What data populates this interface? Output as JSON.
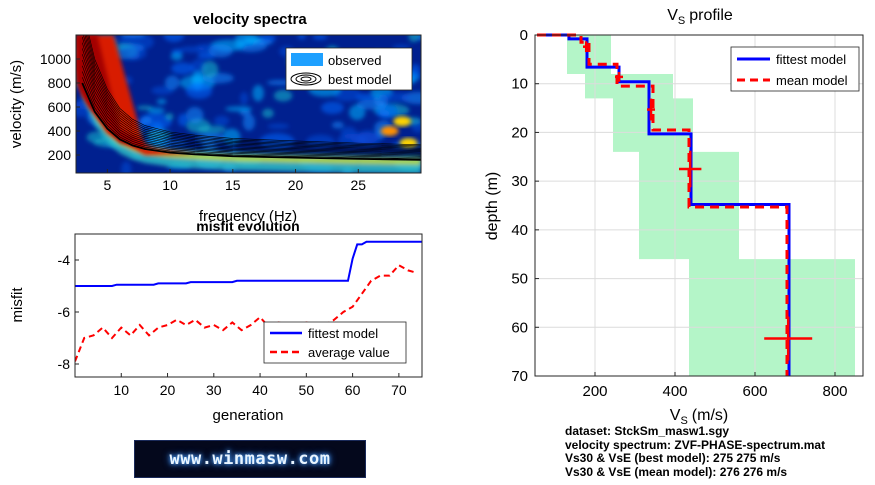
{
  "chart_data": [
    {
      "type": "heatmap",
      "title": "velocity spectra",
      "xlabel": "frequency (Hz)",
      "ylabel": "velocity (m/s)",
      "xlim": [
        2.5,
        30
      ],
      "ylim": [
        50,
        1200
      ],
      "xticks": [
        "5",
        "10",
        "15",
        "20",
        "25"
      ],
      "yticks": [
        "200",
        "400",
        "600",
        "800",
        "1000"
      ],
      "legend": [
        "observed",
        "best model"
      ],
      "legend_position": "top-right",
      "dispersion_curve": {
        "x": [
          3,
          4,
          5,
          6,
          7,
          8,
          10,
          12,
          15,
          20,
          25,
          30
        ],
        "y": [
          800,
          560,
          420,
          330,
          280,
          250,
          220,
          205,
          190,
          178,
          168,
          160
        ]
      }
    },
    {
      "type": "line",
      "title": "misfit evolution",
      "xlabel": "generation",
      "ylabel": "misfit",
      "xlim": [
        0,
        75
      ],
      "ylim": [
        -8.5,
        -3
      ],
      "xticks": [
        "10",
        "20",
        "30",
        "40",
        "50",
        "60",
        "70"
      ],
      "yticks": [
        "-8",
        "-6",
        "-4"
      ],
      "legend_position": "bottom-right",
      "series": [
        {
          "name": "fittest model",
          "color": "#0000ff",
          "style": "solid",
          "x": [
            0,
            8,
            9,
            17,
            18,
            24,
            25,
            34,
            35,
            59,
            60,
            61,
            62,
            63,
            75
          ],
          "y": [
            -5.0,
            -5.0,
            -4.95,
            -4.95,
            -4.9,
            -4.9,
            -4.85,
            -4.85,
            -4.8,
            -4.8,
            -3.95,
            -3.4,
            -3.4,
            -3.3,
            -3.3
          ]
        },
        {
          "name": "average value",
          "color": "#ff0000",
          "style": "dashed",
          "x": [
            0,
            2,
            4,
            6,
            8,
            10,
            12,
            14,
            16,
            18,
            20,
            22,
            24,
            26,
            28,
            30,
            32,
            34,
            36,
            38,
            40,
            42,
            44,
            46,
            48,
            50,
            52,
            54,
            56,
            58,
            60,
            62,
            64,
            66,
            68,
            70,
            72,
            74
          ],
          "y": [
            -7.9,
            -7.0,
            -6.9,
            -6.6,
            -7.0,
            -6.6,
            -6.9,
            -6.5,
            -6.9,
            -6.6,
            -6.5,
            -6.3,
            -6.5,
            -6.3,
            -6.6,
            -6.5,
            -6.7,
            -6.4,
            -6.7,
            -6.5,
            -6.2,
            -6.6,
            -6.4,
            -6.5,
            -6.6,
            -6.4,
            -6.5,
            -6.5,
            -6.3,
            -6.0,
            -5.8,
            -5.3,
            -4.8,
            -4.6,
            -4.6,
            -4.2,
            -4.4,
            -4.5
          ]
        }
      ]
    },
    {
      "type": "line",
      "title": "V_S profile",
      "title_main": "V",
      "title_sub": "S",
      "title_rest": "profile",
      "xlabel_main": "V",
      "xlabel_sub": "S",
      "xlabel_rest": "(m/s)",
      "ylabel": "depth (m)",
      "xlim": [
        50,
        870
      ],
      "ylim": [
        0,
        70
      ],
      "y_reversed": true,
      "xticks": [
        "200",
        "400",
        "600",
        "800"
      ],
      "yticks": [
        "0",
        "10",
        "20",
        "30",
        "40",
        "50",
        "60",
        "70"
      ],
      "legend_position": "top-right",
      "range_band": {
        "color": "#b4f5c8",
        "x_left": [
          130,
          130,
          175,
          175,
          245,
          245,
          310,
          310,
          435,
          435
        ],
        "x_right": [
          240,
          240,
          395,
          395,
          445,
          445,
          560,
          560,
          850,
          850
        ],
        "depth": [
          0,
          8,
          8,
          13,
          13,
          24,
          24,
          46,
          46,
          70
        ]
      },
      "series": [
        {
          "name": "fittest model",
          "color": "#0000ff",
          "style": "solid",
          "x": [
            55,
            135,
            135,
            180,
            180,
            260,
            260,
            335,
            335,
            440,
            440,
            685,
            685
          ],
          "y": [
            0,
            0,
            0.8,
            0.8,
            6.6,
            6.6,
            9.6,
            9.6,
            20.3,
            20.3,
            34.8,
            34.8,
            70
          ]
        },
        {
          "name": "mean model",
          "color": "#ff0000",
          "style": "dashed",
          "x": [
            55,
            165,
            165,
            185,
            185,
            255,
            255,
            345,
            345,
            435,
            435,
            680,
            680
          ],
          "y": [
            0,
            0,
            1.5,
            1.5,
            6.0,
            6.0,
            10.5,
            10.5,
            19.5,
            19.5,
            35.3,
            35.3,
            70
          ]
        }
      ],
      "error_bars": [
        {
          "x": 178,
          "y": 2.4,
          "dx": 8,
          "dy": 2.2
        },
        {
          "x": 260,
          "y": 8.6,
          "dx": 10,
          "dy": 2.0
        },
        {
          "x": 340,
          "y": 15.3,
          "dx": 10,
          "dy": 4.5
        },
        {
          "x": 438,
          "y": 27.5,
          "dx": 28,
          "dy": 7.5
        },
        {
          "x": 683,
          "y": 62.3,
          "dx": 60,
          "dy": 9.0
        }
      ]
    }
  ],
  "info": {
    "line1": "dataset: StckSm_masw1.sgy",
    "line2": "velocity spectrum: ZVF-PHASE-spectrum.mat",
    "line3": "Vs30 & VsE (best model): 275  275 m/s",
    "line4": "Vs30 & VsE (mean model): 276  276 m/s"
  },
  "logo": {
    "text": "www.winmasw.com"
  }
}
